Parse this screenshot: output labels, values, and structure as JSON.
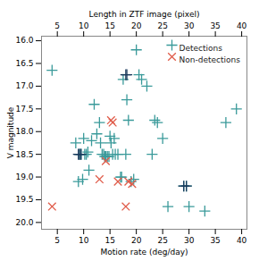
{
  "chart_data": {
    "type": "scatter",
    "xlabel": "Motion rate (deg/day)",
    "ylabel": "V magnitude",
    "x2label": "Length in ZTF image (pixel)",
    "xlim": [
      2,
      41
    ],
    "ylim": [
      20.15,
      15.9
    ],
    "xticks": [
      5,
      10,
      15,
      20,
      25,
      30,
      35,
      40
    ],
    "yticks": [
      {
        "value": 16,
        "label": "16.0"
      },
      16.5,
      {
        "value": 17,
        "label": "17.0"
      },
      17.5,
      {
        "value": 18,
        "label": "18.0"
      },
      18.5,
      {
        "value": 19,
        "label": "19.0"
      },
      19.5,
      {
        "value": 20,
        "label": "20.0"
      }
    ],
    "x2ticks": [
      5,
      10,
      15,
      20,
      25,
      30,
      35,
      40
    ],
    "legend": "upper right",
    "series": [
      {
        "name": "Detections",
        "color": "#3a9a9a",
        "marker": "plus",
        "x": [
          4.0,
          8.5,
          9.0,
          9.2,
          9.5,
          9.8,
          10.0,
          10.2,
          10.5,
          10.8,
          11.0,
          11.5,
          12.0,
          12.5,
          13.0,
          13.2,
          13.5,
          13.8,
          14.0,
          14.2,
          14.5,
          14.8,
          15.0,
          15.2,
          15.5,
          15.8,
          16.0,
          16.5,
          17.0,
          17.2,
          17.5,
          18.0,
          18.2,
          18.5,
          19.0,
          19.5,
          20.0,
          20.5,
          21.0,
          22.0,
          23.0,
          23.5,
          24.0,
          25.0,
          26.0,
          29.0,
          29.5,
          30.0,
          33.0,
          37.0,
          39.0
        ],
        "values": [
          16.65,
          18.25,
          19.1,
          18.5,
          18.5,
          19.05,
          18.15,
          18.5,
          18.5,
          18.45,
          18.85,
          18.2,
          17.4,
          18.05,
          17.8,
          18.25,
          18.5,
          18.5,
          18.55,
          18.55,
          18.55,
          18.55,
          18.1,
          18.25,
          18.5,
          18.15,
          18.5,
          18.5,
          19.0,
          19.0,
          16.85,
          18.5,
          17.3,
          17.75,
          19.1,
          19.05,
          16.2,
          16.75,
          16.85,
          17.0,
          18.5,
          17.75,
          17.8,
          18.15,
          19.65,
          19.2,
          19.2,
          19.65,
          19.75,
          17.8,
          17.5
        ]
      },
      {
        "name": null,
        "color": "#1a3a5c",
        "marker": "plus",
        "x": [
          9.0,
          9.2,
          9.5,
          18.0,
          18.2,
          29.0,
          29.5
        ],
        "values": [
          18.5,
          18.5,
          18.5,
          16.75,
          16.75,
          19.2,
          19.2
        ]
      },
      {
        "name": "Non-detections",
        "color": "#e05c4a",
        "marker": "times",
        "x": [
          4.0,
          13.0,
          14.2,
          15.2,
          15.5,
          16.5,
          18.0,
          18.5,
          19.2
        ],
        "values": [
          19.65,
          19.05,
          18.65,
          17.75,
          17.8,
          19.1,
          19.65,
          19.1,
          19.15
        ]
      }
    ]
  }
}
